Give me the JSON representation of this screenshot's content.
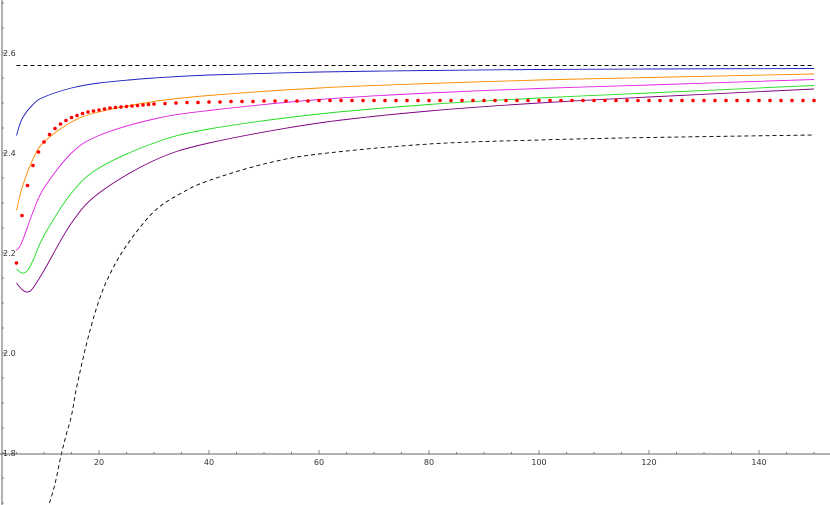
{
  "chart_data": {
    "type": "line",
    "title": "",
    "xlabel": "",
    "ylabel": "",
    "xlim": [
      2,
      150
    ],
    "ylim": [
      1.7,
      2.7
    ],
    "grid": false,
    "x_ticks": [
      20,
      40,
      60,
      80,
      100,
      120,
      140
    ],
    "y_ticks": [
      1.8,
      2.0,
      2.2,
      2.4,
      2.6
    ],
    "x_tick_labels": [
      "20",
      "40",
      "60",
      "80",
      "100",
      "120",
      "140"
    ],
    "y_tick_labels": [
      "1.8",
      "2.0",
      "2.2",
      "2.4",
      "2.6"
    ],
    "series": [
      {
        "color": "#000000",
        "style": "dashed",
        "x": [
          5,
          150
        ],
        "y": [
          2.575,
          2.575
        ]
      },
      {
        "color": "#1f1fbf",
        "style": "solid",
        "x": [
          5,
          6,
          8,
          10,
          15,
          20,
          30,
          40,
          60,
          80,
          100,
          120,
          150
        ],
        "y": [
          2.435,
          2.468,
          2.497,
          2.512,
          2.53,
          2.54,
          2.55,
          2.556,
          2.562,
          2.565,
          2.567,
          2.568,
          2.569
        ]
      },
      {
        "color": "#ff8c00",
        "style": "solid",
        "x": [
          5,
          6,
          8,
          10,
          15,
          20,
          30,
          40,
          60,
          80,
          100,
          120,
          150
        ],
        "y": [
          2.285,
          2.33,
          2.388,
          2.422,
          2.462,
          2.482,
          2.503,
          2.515,
          2.53,
          2.539,
          2.546,
          2.551,
          2.558
        ]
      },
      {
        "color": "#e020e0",
        "style": "solid",
        "x": [
          5,
          6,
          8,
          10,
          15,
          20,
          30,
          40,
          60,
          80,
          100,
          120,
          150
        ],
        "y": [
          2.205,
          2.222,
          2.282,
          2.33,
          2.4,
          2.435,
          2.468,
          2.485,
          2.507,
          2.52,
          2.529,
          2.536,
          2.547
        ]
      },
      {
        "color": "#22dd22",
        "style": "solid",
        "x": [
          5,
          6,
          7,
          8,
          10,
          15,
          20,
          30,
          40,
          60,
          80,
          100,
          120,
          150
        ],
        "y": [
          2.168,
          2.16,
          2.165,
          2.185,
          2.235,
          2.32,
          2.37,
          2.42,
          2.448,
          2.478,
          2.497,
          2.51,
          2.52,
          2.535
        ]
      },
      {
        "color": "#800080",
        "style": "solid",
        "x": [
          5,
          6,
          7,
          8,
          10,
          15,
          20,
          30,
          40,
          60,
          80,
          100,
          120,
          150
        ],
        "y": [
          2.14,
          2.127,
          2.122,
          2.13,
          2.165,
          2.26,
          2.32,
          2.385,
          2.42,
          2.46,
          2.484,
          2.5,
          2.512,
          2.528
        ]
      },
      {
        "color": "#000000",
        "style": "dashed",
        "x": [
          11,
          12,
          13,
          14,
          15,
          16,
          18,
          20,
          22,
          25,
          30,
          35,
          40,
          50,
          60,
          80,
          100,
          120,
          150
        ],
        "y": [
          1.7,
          1.738,
          1.79,
          1.835,
          1.875,
          1.935,
          2.03,
          2.105,
          2.158,
          2.215,
          2.283,
          2.32,
          2.345,
          2.378,
          2.398,
          2.418,
          2.426,
          2.431,
          2.436
        ]
      },
      {
        "color": "#ff0000",
        "style": "dots",
        "x": [
          5,
          6,
          7,
          8,
          9,
          10,
          11,
          12,
          13,
          14,
          15,
          16,
          17,
          18,
          19,
          20,
          21,
          22,
          23,
          24,
          25,
          26,
          27,
          28,
          29,
          30,
          32,
          34,
          36,
          38,
          40,
          42,
          44,
          46,
          48,
          50,
          52,
          54,
          56,
          58,
          60,
          62,
          64,
          66,
          68,
          70,
          72,
          74,
          76,
          78,
          80,
          82,
          84,
          86,
          88,
          90,
          92,
          94,
          96,
          98,
          100,
          102,
          104,
          106,
          108,
          110,
          112,
          114,
          116,
          118,
          120,
          122,
          124,
          126,
          128,
          130,
          132,
          134,
          136,
          138,
          140,
          142,
          144,
          146,
          148,
          150
        ],
        "y": [
          2.18,
          2.275,
          2.335,
          2.375,
          2.402,
          2.422,
          2.437,
          2.449,
          2.458,
          2.465,
          2.471,
          2.475,
          2.479,
          2.482,
          2.484,
          2.486,
          2.488,
          2.49,
          2.491,
          2.492,
          2.493,
          2.494,
          2.495,
          2.496,
          2.497,
          2.498,
          2.499,
          2.5,
          2.501,
          2.501,
          2.502,
          2.502,
          2.503,
          2.503,
          2.503,
          2.504,
          2.504,
          2.504,
          2.504,
          2.504,
          2.505,
          2.505,
          2.505,
          2.505,
          2.505,
          2.505,
          2.505,
          2.505,
          2.505,
          2.505,
          2.505,
          2.505,
          2.505,
          2.505,
          2.505,
          2.505,
          2.505,
          2.505,
          2.505,
          2.505,
          2.505,
          2.505,
          2.505,
          2.505,
          2.505,
          2.505,
          2.505,
          2.505,
          2.505,
          2.505,
          2.505,
          2.505,
          2.505,
          2.505,
          2.505,
          2.505,
          2.505,
          2.505,
          2.505,
          2.505,
          2.505,
          2.505,
          2.505,
          2.505,
          2.505,
          2.505
        ]
      }
    ]
  }
}
